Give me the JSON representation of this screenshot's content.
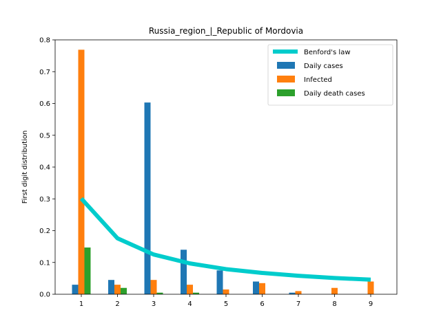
{
  "chart_data": {
    "type": "bar",
    "title": "Russia_region_|_Republic of Mordovia",
    "xlabel": "",
    "ylabel": "First digit distribution",
    "categories": [
      "1",
      "2",
      "3",
      "4",
      "5",
      "6",
      "7",
      "8",
      "9"
    ],
    "ylim": [
      0,
      0.8
    ],
    "yticks": [
      "0.0",
      "0.1",
      "0.2",
      "0.3",
      "0.4",
      "0.5",
      "0.6",
      "0.7",
      "0.8"
    ],
    "legend_position": "top-right",
    "grid": false,
    "series": [
      {
        "name": "Daily cases",
        "kind": "bar",
        "color": "#1f77b4",
        "values": [
          0.03,
          0.045,
          0.603,
          0.14,
          0.075,
          0.04,
          0.005,
          0.0,
          0.0
        ]
      },
      {
        "name": "Infected",
        "kind": "bar",
        "color": "#ff7f0e",
        "values": [
          0.769,
          0.03,
          0.045,
          0.03,
          0.015,
          0.035,
          0.01,
          0.02,
          0.04
        ]
      },
      {
        "name": "Daily death cases",
        "kind": "bar",
        "color": "#2ca02c",
        "values": [
          0.147,
          0.02,
          0.005,
          0.005,
          0.0,
          0.0,
          0.0,
          0.0,
          0.0
        ]
      },
      {
        "name": "Benford's law",
        "kind": "line",
        "color": "#00cccc",
        "values": [
          0.301,
          0.176,
          0.125,
          0.097,
          0.079,
          0.067,
          0.058,
          0.051,
          0.046
        ]
      }
    ]
  }
}
